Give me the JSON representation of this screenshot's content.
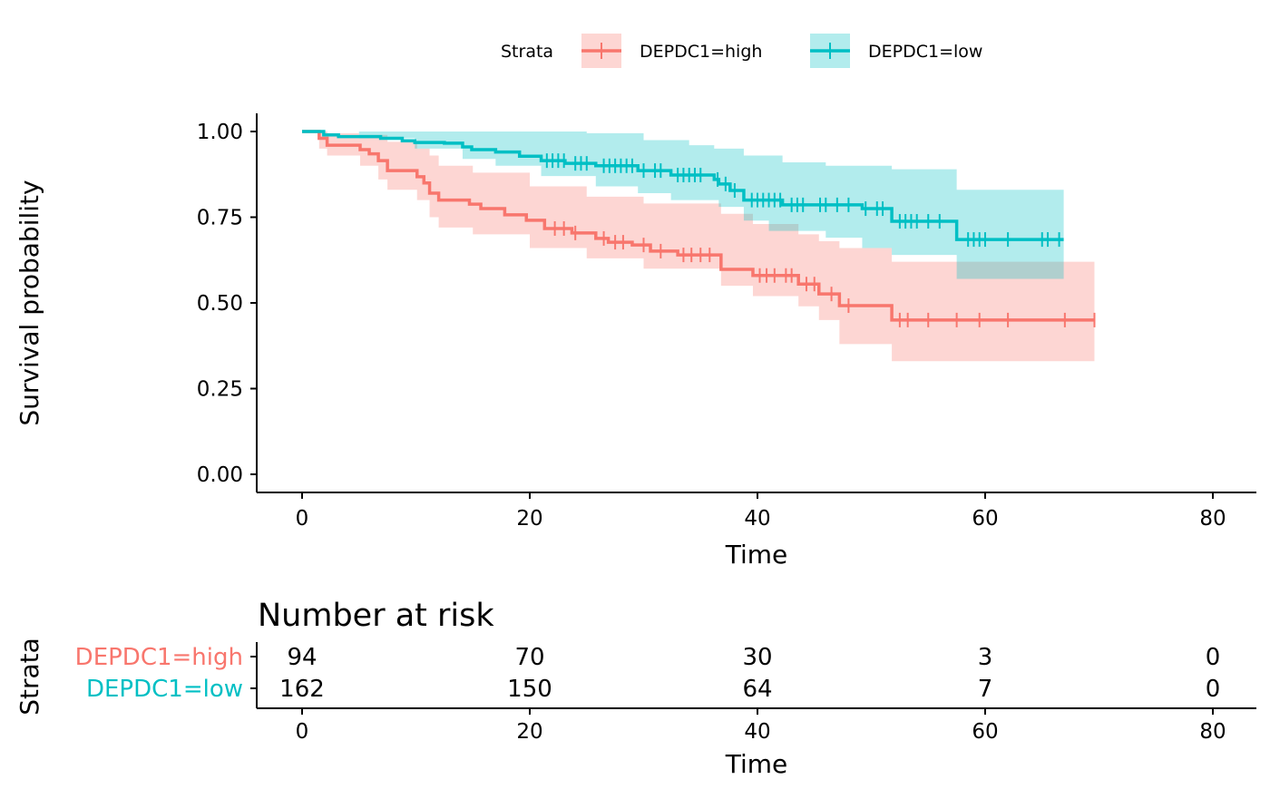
{
  "chart_data": {
    "type": "line",
    "subtype": "kaplan-meier",
    "xlabel": "Time",
    "ylabel": "Survival probability",
    "xlim": [
      0,
      80
    ],
    "ylim": [
      0,
      1
    ],
    "x_ticks": [
      "0",
      "20",
      "40",
      "60",
      "80"
    ],
    "x_tick_values": [
      0,
      20,
      40,
      60,
      80
    ],
    "y_ticks": [
      "0.00",
      "0.25",
      "0.50",
      "0.75",
      "1.00"
    ],
    "y_tick_values": [
      0,
      0.25,
      0.5,
      0.75,
      1
    ],
    "legend": {
      "title": "Strata",
      "placement": "top"
    },
    "series": [
      {
        "name": "DEPDC1=high",
        "color": "#F8766D",
        "end_time": 69.6,
        "steps": [
          [
            0,
            1.0
          ],
          [
            1.5,
            0.98
          ],
          [
            2.2,
            0.96
          ],
          [
            5.1,
            0.947
          ],
          [
            5.9,
            0.935
          ],
          [
            6.7,
            0.915
          ],
          [
            7.5,
            0.886
          ],
          [
            10.1,
            0.868
          ],
          [
            10.7,
            0.85
          ],
          [
            11.2,
            0.82
          ],
          [
            12,
            0.8
          ],
          [
            14.7,
            0.788
          ],
          [
            15.7,
            0.775
          ],
          [
            17.8,
            0.757
          ],
          [
            19.7,
            0.741
          ],
          [
            21.3,
            0.717
          ],
          [
            23.7,
            0.704
          ],
          [
            25.8,
            0.688
          ],
          [
            26.9,
            0.677
          ],
          [
            29,
            0.669
          ],
          [
            30.6,
            0.651
          ],
          [
            33,
            0.64
          ],
          [
            36.8,
            0.598
          ],
          [
            39.6,
            0.58
          ],
          [
            43.6,
            0.555
          ],
          [
            45.4,
            0.526
          ],
          [
            47.2,
            0.492
          ],
          [
            51.8,
            0.45
          ]
        ],
        "ci_upper": [
          [
            0,
            1.0
          ],
          [
            2.2,
            0.995
          ],
          [
            5,
            0.99
          ],
          [
            7.5,
            0.97
          ],
          [
            10.1,
            0.95
          ],
          [
            11.2,
            0.93
          ],
          [
            12,
            0.9
          ],
          [
            15,
            0.88
          ],
          [
            20,
            0.84
          ],
          [
            25,
            0.81
          ],
          [
            30,
            0.79
          ],
          [
            36.8,
            0.76
          ],
          [
            39.6,
            0.73
          ],
          [
            43.6,
            0.7
          ],
          [
            45.4,
            0.68
          ],
          [
            47.2,
            0.66
          ],
          [
            51.8,
            0.62
          ]
        ],
        "ci_lower": [
          [
            0,
            1.0
          ],
          [
            1.5,
            0.95
          ],
          [
            2.2,
            0.93
          ],
          [
            5.1,
            0.9
          ],
          [
            6.7,
            0.86
          ],
          [
            7.5,
            0.83
          ],
          [
            10.1,
            0.8
          ],
          [
            11.2,
            0.75
          ],
          [
            12,
            0.72
          ],
          [
            15,
            0.7
          ],
          [
            20,
            0.66
          ],
          [
            25,
            0.63
          ],
          [
            30,
            0.6
          ],
          [
            36.8,
            0.55
          ],
          [
            39.6,
            0.52
          ],
          [
            43.6,
            0.49
          ],
          [
            45.4,
            0.45
          ],
          [
            47.2,
            0.38
          ],
          [
            51.8,
            0.33
          ]
        ],
        "censored": [
          22.2,
          23,
          24,
          26.5,
          27.5,
          28.2,
          30,
          31.5,
          33.5,
          34.2,
          35,
          35.8,
          40.2,
          40.8,
          41.5,
          42.5,
          43,
          44.3,
          45,
          46.5,
          48,
          52.5,
          53.2,
          55,
          57.5,
          59.5,
          62,
          67,
          69.6
        ]
      },
      {
        "name": "DEPDC1=low",
        "color": "#00BFC4",
        "end_time": 66.9,
        "steps": [
          [
            0,
            1.0
          ],
          [
            1.9,
            0.99
          ],
          [
            3.2,
            0.985
          ],
          [
            6.9,
            0.98
          ],
          [
            8.8,
            0.973
          ],
          [
            9.9,
            0.968
          ],
          [
            12.5,
            0.966
          ],
          [
            14.1,
            0.955
          ],
          [
            14.9,
            0.947
          ],
          [
            17,
            0.94
          ],
          [
            19.1,
            0.928
          ],
          [
            21,
            0.915
          ],
          [
            23.1,
            0.907
          ],
          [
            25.8,
            0.9
          ],
          [
            29.5,
            0.886
          ],
          [
            32.4,
            0.873
          ],
          [
            36.2,
            0.86
          ],
          [
            36.6,
            0.847
          ],
          [
            37.6,
            0.828
          ],
          [
            38.8,
            0.8
          ],
          [
            42.2,
            0.786
          ],
          [
            49.2,
            0.775
          ],
          [
            51.8,
            0.738
          ],
          [
            57.5,
            0.685
          ]
        ],
        "ci_upper": [
          [
            0,
            1.0
          ],
          [
            25,
            0.995
          ],
          [
            30,
            0.975
          ],
          [
            34,
            0.96
          ],
          [
            36.2,
            0.95
          ],
          [
            38.8,
            0.93
          ],
          [
            42.2,
            0.91
          ],
          [
            46,
            0.9
          ],
          [
            51.8,
            0.89
          ],
          [
            57.5,
            0.83
          ]
        ],
        "ci_lower": [
          [
            0,
            1.0
          ],
          [
            5,
            0.98
          ],
          [
            9.9,
            0.95
          ],
          [
            14.1,
            0.92
          ],
          [
            17,
            0.9
          ],
          [
            21,
            0.87
          ],
          [
            25.8,
            0.84
          ],
          [
            29.5,
            0.82
          ],
          [
            32.4,
            0.8
          ],
          [
            36.6,
            0.78
          ],
          [
            38.8,
            0.74
          ],
          [
            41,
            0.71
          ],
          [
            46,
            0.69
          ],
          [
            49.2,
            0.66
          ],
          [
            51.8,
            0.64
          ],
          [
            57.5,
            0.57
          ]
        ],
        "censored": [
          21.5,
          22,
          22.5,
          23,
          24,
          24.5,
          25,
          26.5,
          27,
          27.5,
          28,
          28.5,
          29,
          30,
          31,
          31.5,
          33,
          33.5,
          34,
          34.5,
          35,
          36.5,
          37.2,
          38,
          39.5,
          40,
          40.5,
          41,
          41.5,
          42,
          43,
          43.5,
          44,
          45.5,
          46,
          47,
          48,
          49.5,
          50.5,
          51,
          52.5,
          53,
          53.5,
          54,
          55,
          56,
          58.5,
          59,
          59.5,
          60,
          62,
          65,
          65.5,
          66.5
        ]
      }
    ],
    "risk_table": {
      "title": "Number at risk",
      "ylabel": "Strata",
      "xlabel": "Time",
      "times": [
        0,
        20,
        40,
        60,
        80
      ],
      "rows": [
        {
          "name": "DEPDC1=high",
          "color": "#F8766D",
          "counts": [
            "94",
            "70",
            "30",
            "3",
            "0"
          ]
        },
        {
          "name": "DEPDC1=low",
          "color": "#00BFC4",
          "counts": [
            "162",
            "150",
            "64",
            "7",
            "0"
          ]
        }
      ]
    }
  }
}
